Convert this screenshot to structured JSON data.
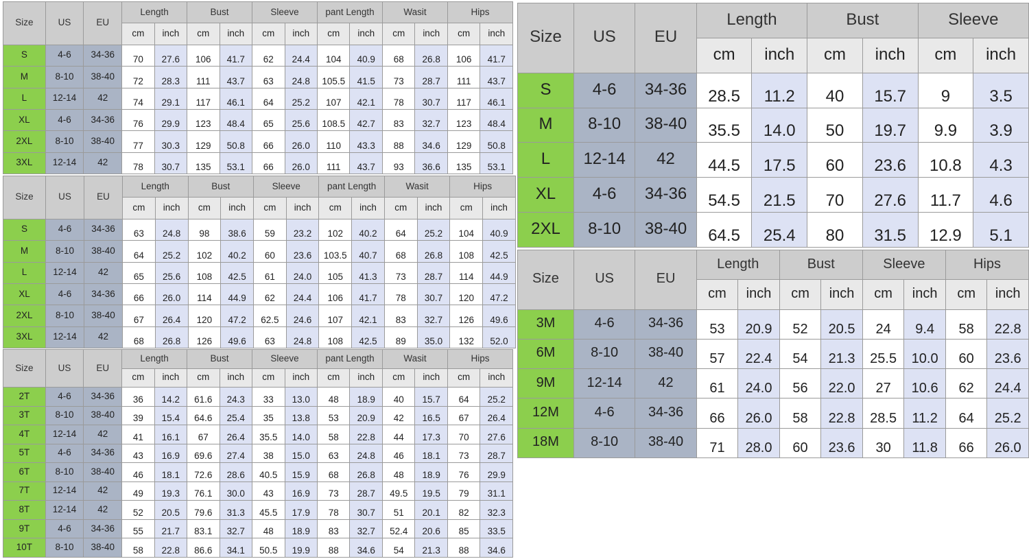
{
  "colors": {
    "size_column": "#8ccf4d",
    "us_eu_column": "#aab4c5",
    "inch_column": "#dde2f4",
    "header": "#cdcdcd"
  },
  "tables": [
    {
      "id": "tA",
      "fixed": [
        "Size",
        "US",
        "EU"
      ],
      "groups": [
        "Length",
        "Bust",
        "Sleeve",
        "pant Length",
        "Wasit",
        "Hips"
      ],
      "units": [
        "cm",
        "inch"
      ],
      "rows": [
        [
          "S",
          "4-6",
          "34-36",
          "70",
          "27.6",
          "106",
          "41.7",
          "62",
          "24.4",
          "104",
          "40.9",
          "68",
          "26.8",
          "106",
          "41.7"
        ],
        [
          "M",
          "8-10",
          "38-40",
          "72",
          "28.3",
          "111",
          "43.7",
          "63",
          "24.8",
          "105.5",
          "41.5",
          "73",
          "28.7",
          "111",
          "43.7"
        ],
        [
          "L",
          "12-14",
          "42",
          "74",
          "29.1",
          "117",
          "46.1",
          "64",
          "25.2",
          "107",
          "42.1",
          "78",
          "30.7",
          "117",
          "46.1"
        ],
        [
          "XL",
          "4-6",
          "34-36",
          "76",
          "29.9",
          "123",
          "48.4",
          "65",
          "25.6",
          "108.5",
          "42.7",
          "83",
          "32.7",
          "123",
          "48.4"
        ],
        [
          "2XL",
          "8-10",
          "38-40",
          "77",
          "30.3",
          "129",
          "50.8",
          "66",
          "26.0",
          "110",
          "43.3",
          "88",
          "34.6",
          "129",
          "50.8"
        ],
        [
          "3XL",
          "12-14",
          "42",
          "78",
          "30.7",
          "135",
          "53.1",
          "66",
          "26.0",
          "111",
          "43.7",
          "93",
          "36.6",
          "135",
          "53.1"
        ]
      ]
    },
    {
      "id": "tB",
      "fixed": [
        "Size",
        "US",
        "EU"
      ],
      "groups": [
        "Length",
        "Bust",
        "Sleeve",
        "pant Length",
        "Wasit",
        "Hips"
      ],
      "units": [
        "cm",
        "inch"
      ],
      "rows": [
        [
          "S",
          "4-6",
          "34-36",
          "63",
          "24.8",
          "98",
          "38.6",
          "59",
          "23.2",
          "102",
          "40.2",
          "64",
          "25.2",
          "104",
          "40.9"
        ],
        [
          "M",
          "8-10",
          "38-40",
          "64",
          "25.2",
          "102",
          "40.2",
          "60",
          "23.6",
          "103.5",
          "40.7",
          "68",
          "26.8",
          "108",
          "42.5"
        ],
        [
          "L",
          "12-14",
          "42",
          "65",
          "25.6",
          "108",
          "42.5",
          "61",
          "24.0",
          "105",
          "41.3",
          "73",
          "28.7",
          "114",
          "44.9"
        ],
        [
          "XL",
          "4-6",
          "34-36",
          "66",
          "26.0",
          "114",
          "44.9",
          "62",
          "24.4",
          "106",
          "41.7",
          "78",
          "30.7",
          "120",
          "47.2"
        ],
        [
          "2XL",
          "8-10",
          "38-40",
          "67",
          "26.4",
          "120",
          "47.2",
          "62.5",
          "24.6",
          "107",
          "42.1",
          "83",
          "32.7",
          "126",
          "49.6"
        ],
        [
          "3XL",
          "12-14",
          "42",
          "68",
          "26.8",
          "126",
          "49.6",
          "63",
          "24.8",
          "108",
          "42.5",
          "89",
          "35.0",
          "132",
          "52.0"
        ]
      ]
    },
    {
      "id": "tC",
      "fixed": [
        "Size",
        "US",
        "EU"
      ],
      "groups": [
        "Length",
        "Bust",
        "Sleeve",
        "pant Length",
        "Wasit",
        "Hips"
      ],
      "units": [
        "cm",
        "inch"
      ],
      "rows": [
        [
          "2T",
          "4-6",
          "34-36",
          "36",
          "14.2",
          "61.6",
          "24.3",
          "33",
          "13.0",
          "48",
          "18.9",
          "40",
          "15.7",
          "64",
          "25.2"
        ],
        [
          "3T",
          "8-10",
          "38-40",
          "39",
          "15.4",
          "64.6",
          "25.4",
          "35",
          "13.8",
          "53",
          "20.9",
          "42",
          "16.5",
          "67",
          "26.4"
        ],
        [
          "4T",
          "12-14",
          "42",
          "41",
          "16.1",
          "67",
          "26.4",
          "35.5",
          "14.0",
          "58",
          "22.8",
          "44",
          "17.3",
          "70",
          "27.6"
        ],
        [
          "5T",
          "4-6",
          "34-36",
          "43",
          "16.9",
          "69.6",
          "27.4",
          "38",
          "15.0",
          "63",
          "24.8",
          "46",
          "18.1",
          "73",
          "28.7"
        ],
        [
          "6T",
          "8-10",
          "38-40",
          "46",
          "18.1",
          "72.6",
          "28.6",
          "40.5",
          "15.9",
          "68",
          "26.8",
          "48",
          "18.9",
          "76",
          "29.9"
        ],
        [
          "7T",
          "12-14",
          "42",
          "49",
          "19.3",
          "76.1",
          "30.0",
          "43",
          "16.9",
          "73",
          "28.7",
          "49.5",
          "19.5",
          "79",
          "31.1"
        ],
        [
          "8T",
          "12-14",
          "42",
          "52",
          "20.5",
          "79.6",
          "31.3",
          "45.5",
          "17.9",
          "78",
          "30.7",
          "51",
          "20.1",
          "82",
          "32.3"
        ],
        [
          "9T",
          "4-6",
          "34-36",
          "55",
          "21.7",
          "83.1",
          "32.7",
          "48",
          "18.9",
          "83",
          "32.7",
          "52.4",
          "20.6",
          "85",
          "33.5"
        ],
        [
          "10T",
          "8-10",
          "38-40",
          "58",
          "22.8",
          "86.6",
          "34.1",
          "50.5",
          "19.9",
          "88",
          "34.6",
          "54",
          "21.3",
          "88",
          "34.6"
        ]
      ]
    },
    {
      "id": "tD",
      "fixed": [
        "Size",
        "US",
        "EU"
      ],
      "groups": [
        "Length",
        "Bust",
        "Sleeve"
      ],
      "units": [
        "cm",
        "inch"
      ],
      "rows": [
        [
          "S",
          "4-6",
          "34-36",
          "28.5",
          "11.2",
          "40",
          "15.7",
          "9",
          "3.5"
        ],
        [
          "M",
          "8-10",
          "38-40",
          "35.5",
          "14.0",
          "50",
          "19.7",
          "9.9",
          "3.9"
        ],
        [
          "L",
          "12-14",
          "42",
          "44.5",
          "17.5",
          "60",
          "23.6",
          "10.8",
          "4.3"
        ],
        [
          "XL",
          "4-6",
          "34-36",
          "54.5",
          "21.5",
          "70",
          "27.6",
          "11.7",
          "4.6"
        ],
        [
          "2XL",
          "8-10",
          "38-40",
          "64.5",
          "25.4",
          "80",
          "31.5",
          "12.9",
          "5.1"
        ]
      ]
    },
    {
      "id": "tE",
      "fixed": [
        "Size",
        "US",
        "EU"
      ],
      "groups": [
        "Length",
        "Bust",
        "Sleeve",
        "Hips"
      ],
      "units": [
        "cm",
        "inch"
      ],
      "rows": [
        [
          "3M",
          "4-6",
          "34-36",
          "53",
          "20.9",
          "52",
          "20.5",
          "24",
          "9.4",
          "58",
          "22.8"
        ],
        [
          "6M",
          "8-10",
          "38-40",
          "57",
          "22.4",
          "54",
          "21.3",
          "25.5",
          "10.0",
          "60",
          "23.6"
        ],
        [
          "9M",
          "12-14",
          "42",
          "61",
          "24.0",
          "56",
          "22.0",
          "27",
          "10.6",
          "62",
          "24.4"
        ],
        [
          "12M",
          "4-6",
          "34-36",
          "66",
          "26.0",
          "58",
          "22.8",
          "28.5",
          "11.2",
          "64",
          "25.2"
        ],
        [
          "18M",
          "8-10",
          "38-40",
          "71",
          "28.0",
          "60",
          "23.6",
          "30",
          "11.8",
          "66",
          "26.0"
        ]
      ]
    }
  ]
}
